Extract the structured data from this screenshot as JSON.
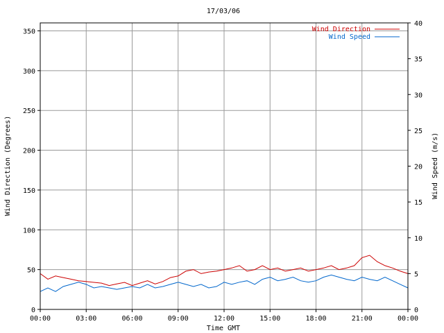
{
  "chart_data": {
    "type": "line",
    "title": "17/03/06",
    "xlabel": "Time GMT",
    "ylabel_left": "Wind Direction (Degrees)",
    "ylabel_right": "Wind Speed (m/s)",
    "x_ticks": [
      "00:00",
      "03:00",
      "06:00",
      "09:00",
      "12:00",
      "15:00",
      "18:00",
      "21:00",
      "00:00"
    ],
    "x_range_hours": [
      0,
      24
    ],
    "ylim_left": [
      0,
      360
    ],
    "ylim_right": [
      0,
      40
    ],
    "y_ticks_left": [
      0,
      50,
      100,
      150,
      200,
      250,
      300,
      350
    ],
    "y_ticks_right": [
      0,
      5,
      10,
      15,
      20,
      25,
      30,
      35,
      40
    ],
    "grid": true,
    "legend_position": "top-right",
    "series": [
      {
        "name": "Wind Direction",
        "axis": "left",
        "color": "#cc0000",
        "x_hours": [
          0,
          0.5,
          1,
          1.5,
          2,
          2.5,
          3,
          3.5,
          4,
          4.5,
          5,
          5.5,
          6,
          6.5,
          7,
          7.5,
          8,
          8.5,
          9,
          9.5,
          10,
          10.5,
          11,
          11.5,
          12,
          12.5,
          13,
          13.5,
          14,
          14.5,
          15,
          15.5,
          16,
          16.5,
          17,
          17.5,
          18,
          18.5,
          19,
          19.5,
          20,
          20.5,
          21,
          21.5,
          22,
          22.5,
          23,
          23.5,
          24
        ],
        "values": [
          45,
          38,
          42,
          40,
          38,
          36,
          35,
          34,
          33,
          30,
          32,
          34,
          30,
          33,
          36,
          32,
          35,
          40,
          42,
          48,
          50,
          45,
          47,
          48,
          50,
          52,
          55,
          48,
          50,
          55,
          50,
          52,
          48,
          50,
          52,
          48,
          50,
          52,
          55,
          50,
          52,
          55,
          65,
          68,
          60,
          55,
          52,
          48,
          45
        ]
      },
      {
        "name": "Wind Speed",
        "axis": "right",
        "color": "#0066cc",
        "x_hours": [
          0,
          0.5,
          1,
          1.5,
          2,
          2.5,
          3,
          3.5,
          4,
          4.5,
          5,
          5.5,
          6,
          6.5,
          7,
          7.5,
          8,
          8.5,
          9,
          9.5,
          10,
          10.5,
          11,
          11.5,
          12,
          12.5,
          13,
          13.5,
          14,
          14.5,
          15,
          15.5,
          16,
          16.5,
          17,
          17.5,
          18,
          18.5,
          19,
          19.5,
          20,
          20.5,
          21,
          21.5,
          22,
          22.5,
          23,
          23.5,
          24
        ],
        "values": [
          2.5,
          3.0,
          2.5,
          3.2,
          3.5,
          3.8,
          3.5,
          3.0,
          3.2,
          3.0,
          2.8,
          3.0,
          3.2,
          3.0,
          3.5,
          3.0,
          3.2,
          3.5,
          3.8,
          3.5,
          3.2,
          3.5,
          3.0,
          3.2,
          3.8,
          3.5,
          3.8,
          4.0,
          3.5,
          4.2,
          4.5,
          4.0,
          4.2,
          4.5,
          4.0,
          3.8,
          4.0,
          4.5,
          4.8,
          4.5,
          4.2,
          4.0,
          4.5,
          4.2,
          4.0,
          4.5,
          4.0,
          3.5,
          3.0
        ]
      }
    ]
  }
}
